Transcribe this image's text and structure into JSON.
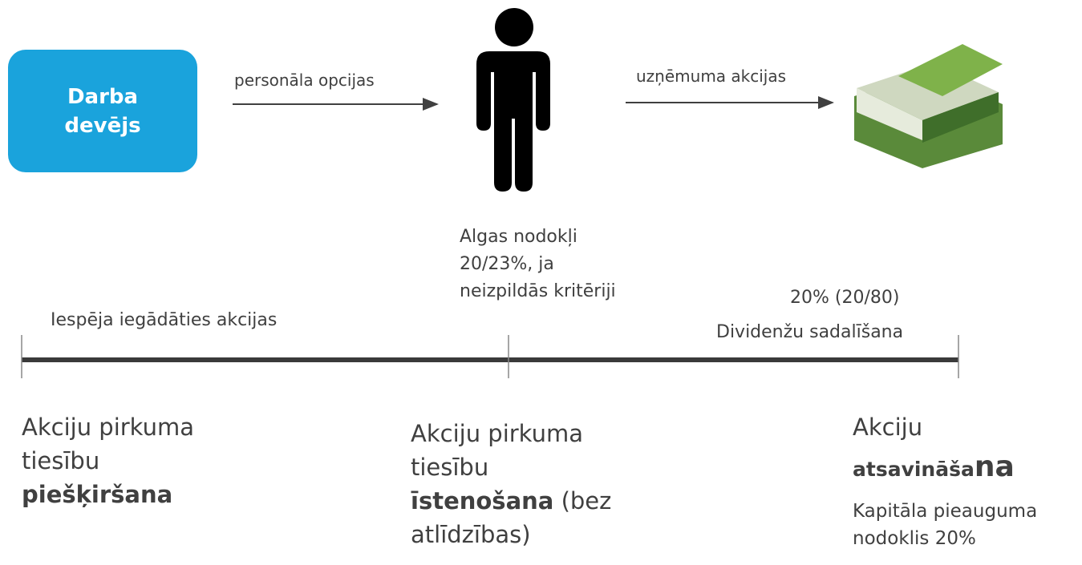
{
  "employer": {
    "lines": [
      "Darba",
      "devējs"
    ]
  },
  "arrows": [
    {
      "label": "personāla opcijas"
    },
    {
      "label": "uzņēmuma akcijas"
    }
  ],
  "payroll_tax": {
    "lines": [
      "Algas nodokļi",
      "20/23%, ja",
      "neizpildās kritēriji"
    ]
  },
  "dividend": {
    "rate": "20% (20/80)",
    "label": "Dividenžu sadalīšana"
  },
  "period_label": "Iespēja iegādāties akcijas",
  "stages": [
    {
      "lines": [
        "Akciju pirkuma",
        "tiesību"
      ],
      "bold": "piešķiršana"
    },
    {
      "lines": [
        "Akciju pirkuma",
        "tiesību"
      ],
      "bold": "īstenošana",
      "rest": " (bez",
      "last": "atlīdzības)"
    },
    {
      "lines": [
        "Akciju"
      ],
      "bold": "atsavināša",
      "bold_large": "na",
      "note": [
        "Kapitāla pieauguma",
        "nodoklis 20%"
      ]
    }
  ]
}
